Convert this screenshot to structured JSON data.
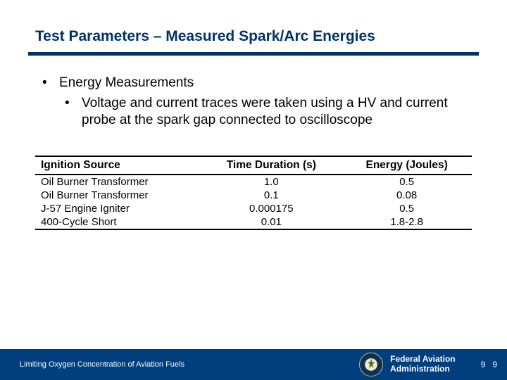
{
  "title": "Test Parameters – Measured Spark/Arc Energies",
  "bullets": {
    "l1": "Energy Measurements",
    "l2": "Voltage and current traces were taken using a HV and current probe at the spark gap connected to oscilloscope"
  },
  "table": {
    "columns": [
      "Ignition Source",
      "Time Duration (s)",
      "Energy (Joules)"
    ],
    "col_align": [
      "left",
      "center",
      "center"
    ],
    "rows": [
      [
        "Oil Burner Transformer",
        "1.0",
        "0.5"
      ],
      [
        "Oil Burner Transformer",
        "0.1",
        "0.08"
      ],
      [
        "J-57 Engine Igniter",
        "0.000175",
        "0.5"
      ],
      [
        "400-Cycle Short",
        "0.01",
        "1.8-2.8"
      ]
    ],
    "border_color": "#000000",
    "header_fontweight": "bold",
    "fontsize": 15
  },
  "footer": {
    "left_text": "Limiting Oxygen Concentration of Aviation Fuels",
    "org_line1": "Federal Aviation",
    "org_line2": "Administration",
    "page_a": "9",
    "page_b": "9",
    "background_color": "#003e7e",
    "text_color": "#ffffff"
  },
  "colors": {
    "title_color": "#003366",
    "underline_color": "#003366",
    "body_text": "#000000",
    "page_bg": "#ffffff"
  }
}
